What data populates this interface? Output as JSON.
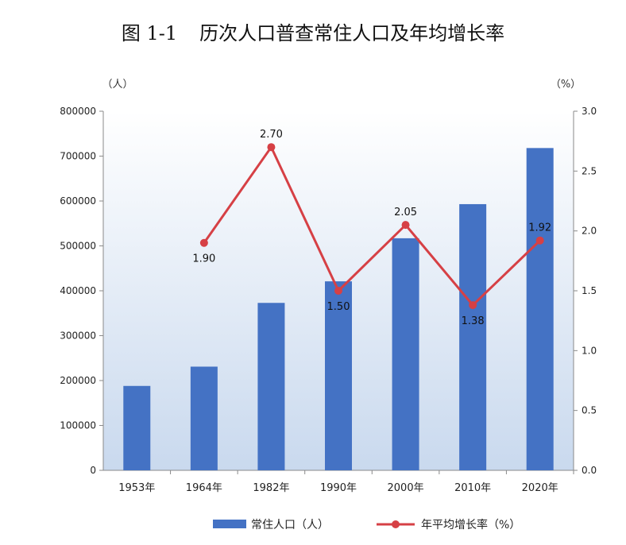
{
  "title": {
    "number": "图 1-1",
    "text": "历次人口普查常住人口及年均增长率"
  },
  "chart_data": {
    "type": "bar+line",
    "categories": [
      "1953年",
      "1964年",
      "1982年",
      "1990年",
      "2000年",
      "2010年",
      "2020年"
    ],
    "series": [
      {
        "name": "常住人口（人）",
        "type": "bar",
        "axis": "left",
        "color": "#4472C4",
        "values": [
          188000,
          231000,
          373000,
          421000,
          517000,
          593000,
          718000
        ]
      },
      {
        "name": "年平均增长率（%）",
        "type": "line",
        "axis": "right",
        "color": "#D64045",
        "values": [
          null,
          1.9,
          2.7,
          1.5,
          2.05,
          1.38,
          1.92
        ],
        "labels": [
          null,
          "1.90",
          "2.70",
          "1.50",
          "2.05",
          "1.38",
          "1.92"
        ]
      }
    ],
    "y_left": {
      "unit_label": "（人）",
      "range": [
        0,
        800000
      ],
      "ticks": [
        "0",
        "100000",
        "200000",
        "300000",
        "400000",
        "500000",
        "600000",
        "700000",
        "800000"
      ]
    },
    "y_right": {
      "unit_label": "（%）",
      "range": [
        0,
        3.0
      ],
      "ticks": [
        "0.0",
        "0.5",
        "1.0",
        "1.5",
        "2.0",
        "2.5",
        "3.0"
      ]
    },
    "legend_position": "bottom",
    "background": "gradient-blue"
  }
}
